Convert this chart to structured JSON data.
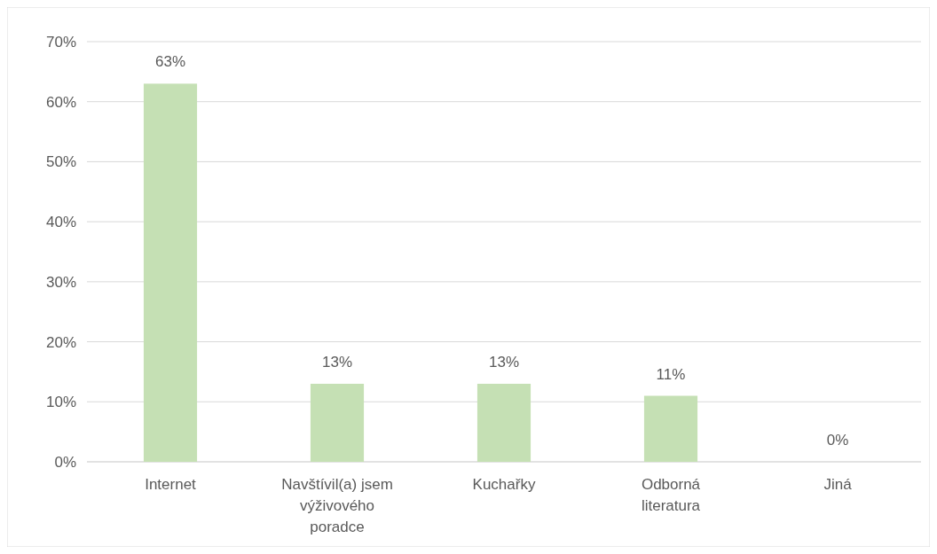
{
  "chart_data": {
    "type": "bar",
    "categories": [
      "Internet",
      "Navštívil(a) jsem výživového poradce",
      "Kuchařky",
      "Odborná literatura",
      "Jiná"
    ],
    "values": [
      63,
      13,
      13,
      11,
      0
    ],
    "color": "#c5e0b4",
    "value_labels": [
      "63%",
      "13%",
      "13%",
      "11%",
      "0%"
    ],
    "ylim": [
      0,
      70
    ],
    "yticks": [
      {
        "value": 0,
        "label": "0%"
      },
      {
        "value": 10,
        "label": "10%"
      },
      {
        "value": 20,
        "label": "20%"
      },
      {
        "value": 30,
        "label": "30%"
      },
      {
        "value": 40,
        "label": "40%"
      },
      {
        "value": 50,
        "label": "50%"
      },
      {
        "value": 60,
        "label": "60%"
      },
      {
        "value": 70,
        "label": "70%"
      }
    ],
    "grid": "y"
  }
}
